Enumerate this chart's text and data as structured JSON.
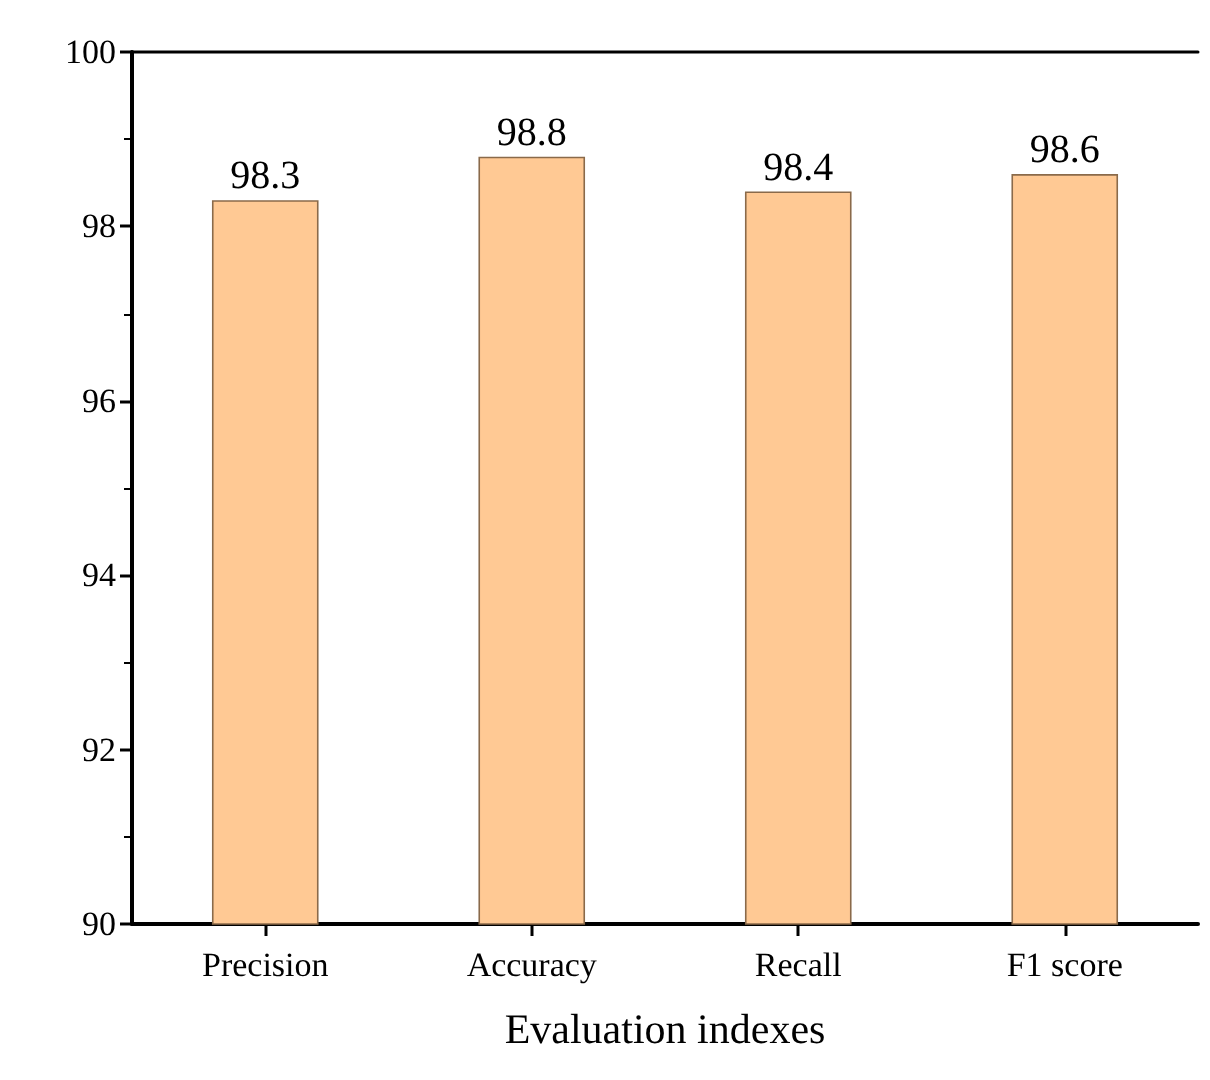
{
  "chart_data": {
    "type": "bar",
    "xlabel": "Evaluation indexes",
    "categories": [
      "Precision",
      "Accuracy",
      "Recall",
      "F1 score"
    ],
    "values": [
      98.3,
      98.8,
      98.4,
      98.6
    ],
    "color": "#ffc994",
    "ylim": [
      90,
      100
    ],
    "yticks": [
      90,
      92,
      94,
      96,
      98,
      100
    ],
    "data_labels": true
  }
}
